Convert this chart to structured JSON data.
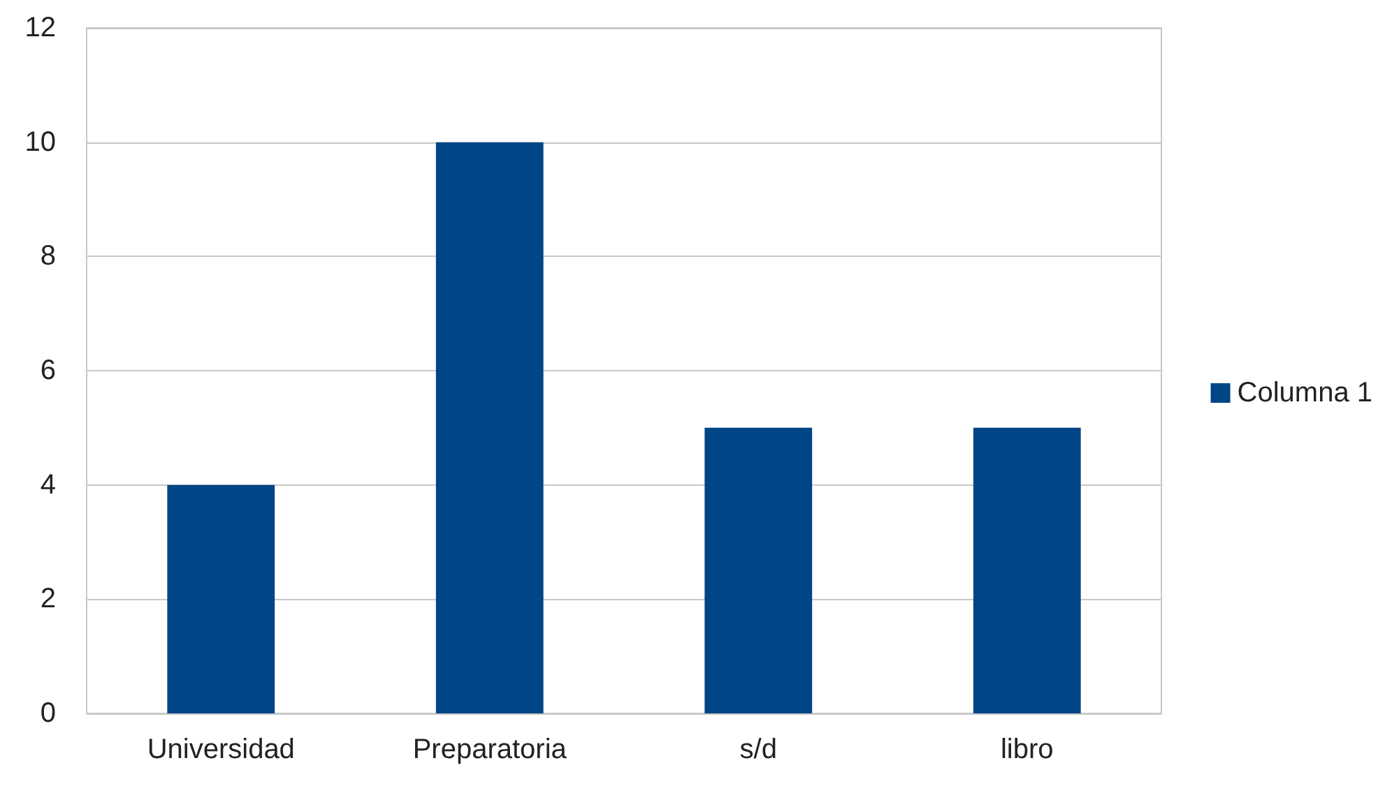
{
  "chart_data": {
    "type": "bar",
    "categories": [
      "Universidad",
      "Preparatoria",
      "s/d",
      "libro"
    ],
    "series": [
      {
        "name": "Columna 1",
        "color": "#004586",
        "values": [
          4,
          10,
          5,
          5
        ]
      }
    ],
    "ylim": [
      0,
      12
    ],
    "yticks": [
      0,
      2,
      4,
      6,
      8,
      10,
      12
    ],
    "grid": "y",
    "legend": "right"
  }
}
